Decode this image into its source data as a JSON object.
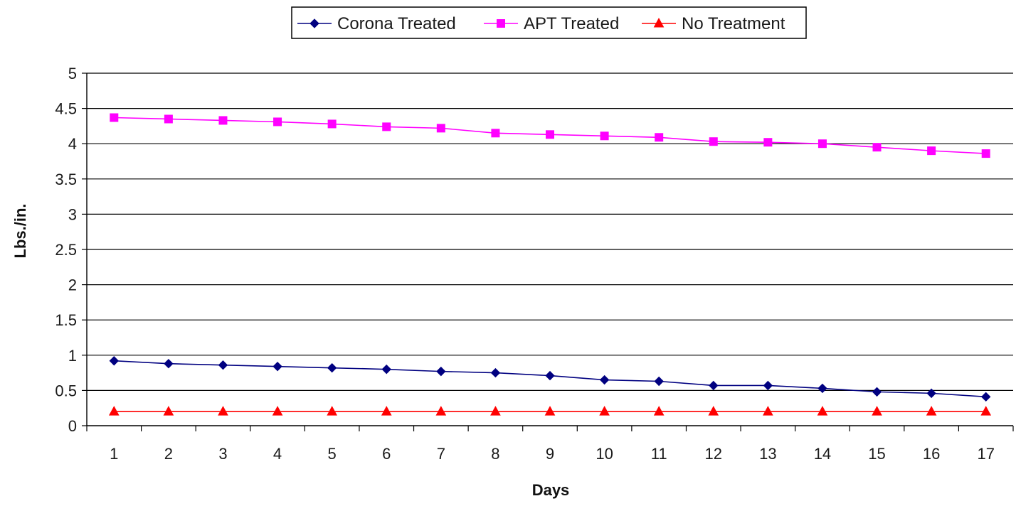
{
  "chart_data": {
    "type": "line",
    "xlabel": "Days",
    "ylabel": "Lbs./in.",
    "categories": [
      "1",
      "2",
      "3",
      "4",
      "5",
      "6",
      "7",
      "8",
      "9",
      "10",
      "11",
      "12",
      "13",
      "14",
      "15",
      "16",
      "17"
    ],
    "x": [
      1,
      2,
      3,
      4,
      5,
      6,
      7,
      8,
      9,
      10,
      11,
      12,
      13,
      14,
      15,
      16,
      17
    ],
    "ylim": [
      0,
      5
    ],
    "yticks": [
      "0",
      "0.5",
      "1",
      "1.5",
      "2",
      "2.5",
      "3",
      "3.5",
      "4",
      "4.5",
      "5"
    ],
    "ytick_values": [
      0,
      0.5,
      1,
      1.5,
      2,
      2.5,
      3,
      3.5,
      4,
      4.5,
      5
    ],
    "grid": true,
    "legend_position": "top-center",
    "series": [
      {
        "name": "Corona Treated",
        "color": "#000080",
        "marker": "diamond",
        "values": [
          0.92,
          0.88,
          0.86,
          0.84,
          0.82,
          0.8,
          0.77,
          0.75,
          0.71,
          0.65,
          0.63,
          0.57,
          0.57,
          0.53,
          0.48,
          0.46,
          0.41
        ]
      },
      {
        "name": "APT Treated",
        "color": "#ff00ff",
        "marker": "square",
        "values": [
          4.37,
          4.35,
          4.33,
          4.31,
          4.28,
          4.24,
          4.22,
          4.15,
          4.13,
          4.11,
          4.09,
          4.03,
          4.02,
          4.0,
          3.95,
          3.9,
          3.86
        ]
      },
      {
        "name": "No Treatment",
        "color": "#ff0000",
        "marker": "triangle",
        "values": [
          0.2,
          0.2,
          0.2,
          0.2,
          0.2,
          0.2,
          0.2,
          0.2,
          0.2,
          0.2,
          0.2,
          0.2,
          0.2,
          0.2,
          0.2,
          0.2,
          0.2
        ]
      }
    ]
  }
}
